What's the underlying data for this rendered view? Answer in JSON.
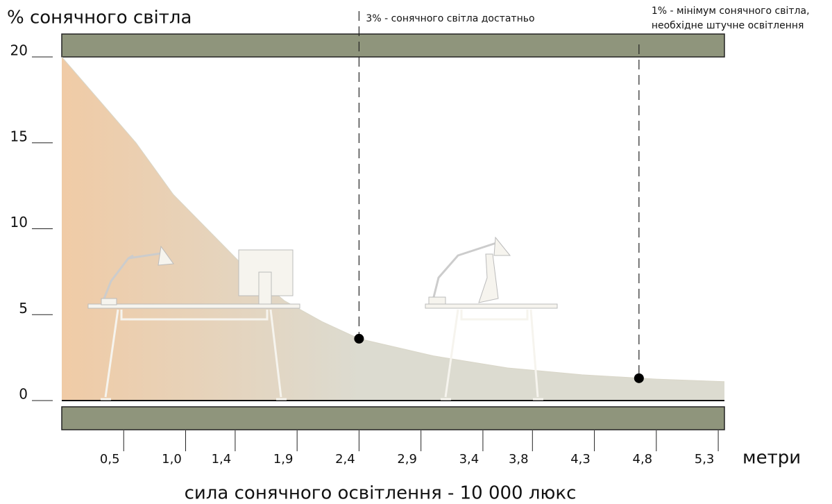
{
  "chart_data": {
    "type": "area",
    "title": "% сонячного світла",
    "x_label": "метри",
    "subtitle": "сила сонячного освітлення - 10 000 люкс",
    "x": [
      0,
      0.3,
      0.6,
      0.9,
      1.2,
      1.5,
      1.8,
      2.1,
      2.4,
      3.0,
      3.6,
      4.2,
      4.8,
      5.35
    ],
    "values": [
      20,
      17.5,
      15,
      12,
      9.8,
      7.6,
      5.8,
      4.6,
      3.6,
      2.6,
      1.9,
      1.5,
      1.25,
      1.1
    ],
    "colors": [
      "#f0cba6",
      "#dcdbd0"
    ],
    "xlim": [
      0,
      5.35
    ],
    "ylim": [
      0,
      20
    ],
    "yticks": [
      0,
      5,
      10,
      15,
      20
    ],
    "xticks": [
      {
        "value": 0.5,
        "label": "0,5"
      },
      {
        "value": 1.0,
        "label": "1,0"
      },
      {
        "value": 1.4,
        "label": "1,4"
      },
      {
        "value": 1.9,
        "label": "1,9"
      },
      {
        "value": 2.4,
        "label": "2,4"
      },
      {
        "value": 2.9,
        "label": "2,9"
      },
      {
        "value": 3.4,
        "label": "3,4"
      },
      {
        "value": 3.8,
        "label": "3,8"
      },
      {
        "value": 4.3,
        "label": "4,3"
      },
      {
        "value": 4.8,
        "label": "4,8"
      },
      {
        "value": 5.3,
        "label": "5,3"
      }
    ],
    "markers": [
      {
        "x": 2.4,
        "y": 3.6,
        "label": [
          "3% - сонячного світла достатньо"
        ]
      },
      {
        "x": 4.66,
        "y": 1.3,
        "label": [
          "1% - мінімум сонячного світла,",
          "необхідне штучне освітлення"
        ]
      }
    ]
  }
}
